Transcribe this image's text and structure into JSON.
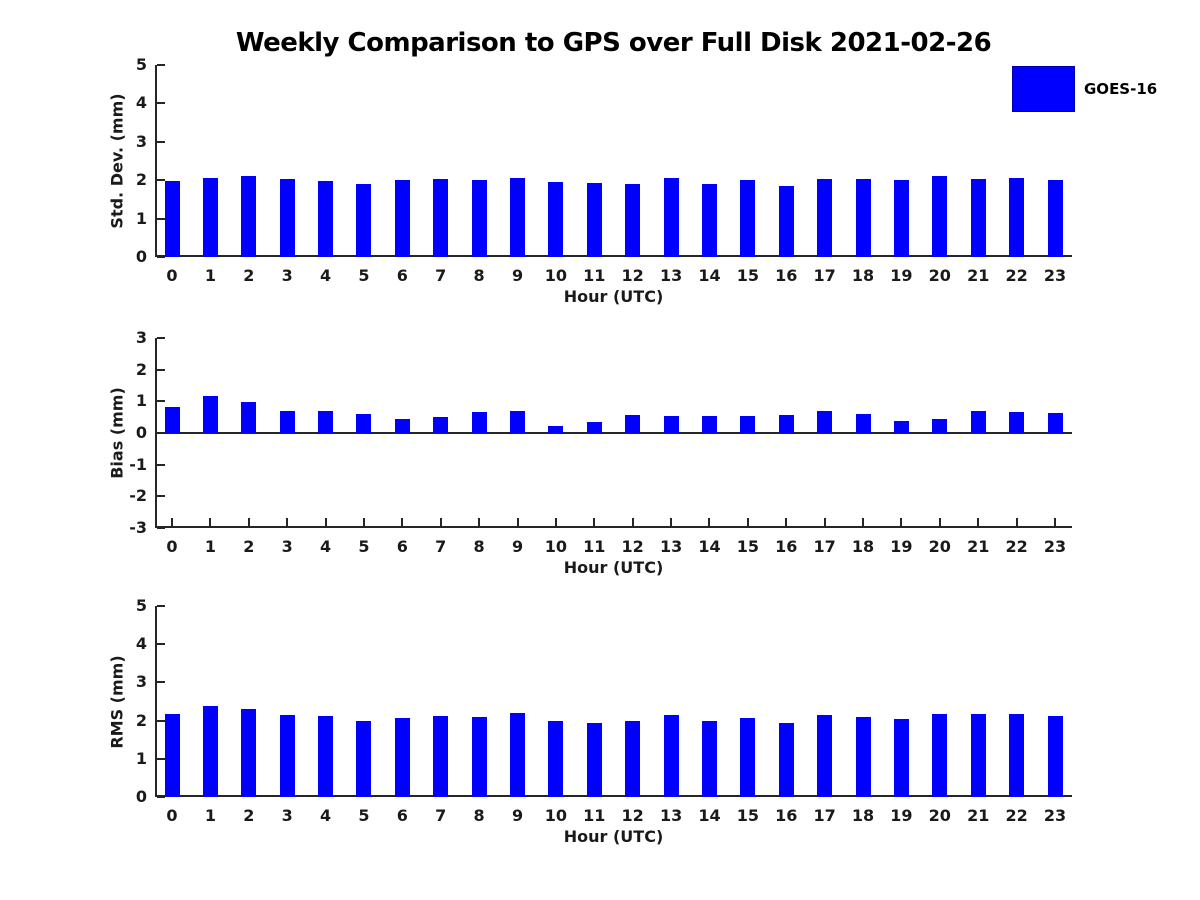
{
  "title": "Weekly Comparison to GPS over Full Disk 2021-02-26",
  "legend": {
    "label": "GOES-16",
    "color": "#0000ff"
  },
  "colors": {
    "bar": "#0000ff",
    "axis": "#262626",
    "text": "#1a1a1a"
  },
  "chart_data": [
    {
      "type": "bar",
      "name": "std-dev",
      "ylabel": "Std. Dev. (mm)",
      "xlabel": "Hour (UTC)",
      "series_name": "GOES-16",
      "categories": [
        "0",
        "1",
        "2",
        "3",
        "4",
        "5",
        "6",
        "7",
        "8",
        "9",
        "10",
        "11",
        "12",
        "13",
        "14",
        "15",
        "16",
        "17",
        "18",
        "19",
        "20",
        "21",
        "22",
        "23"
      ],
      "values": [
        1.98,
        2.07,
        2.1,
        2.02,
        1.99,
        1.89,
        2.01,
        2.04,
        2.01,
        2.06,
        1.95,
        1.92,
        1.91,
        2.06,
        1.9,
        2.0,
        1.86,
        2.02,
        2.02,
        2.0,
        2.12,
        2.04,
        2.06,
        2.01
      ],
      "ylim": [
        0,
        5
      ],
      "yticks": [
        0,
        1,
        2,
        3,
        4,
        5
      ],
      "grid": false,
      "legend_position": "top-right"
    },
    {
      "type": "bar",
      "name": "bias",
      "ylabel": "Bias (mm)",
      "xlabel": "Hour (UTC)",
      "series_name": "GOES-16",
      "categories": [
        "0",
        "1",
        "2",
        "3",
        "4",
        "5",
        "6",
        "7",
        "8",
        "9",
        "10",
        "11",
        "12",
        "13",
        "14",
        "15",
        "16",
        "17",
        "18",
        "19",
        "20",
        "21",
        "22",
        "23"
      ],
      "values": [
        0.82,
        1.16,
        0.97,
        0.7,
        0.71,
        0.61,
        0.45,
        0.5,
        0.67,
        0.69,
        0.23,
        0.36,
        0.56,
        0.53,
        0.54,
        0.53,
        0.57,
        0.7,
        0.61,
        0.37,
        0.45,
        0.71,
        0.67,
        0.62
      ],
      "ylim": [
        -3,
        3
      ],
      "yticks": [
        -3,
        -2,
        -1,
        0,
        1,
        2,
        3
      ],
      "grid": false,
      "legend_position": "none"
    },
    {
      "type": "bar",
      "name": "rms",
      "ylabel": "RMS (mm)",
      "xlabel": "Hour (UTC)",
      "series_name": "GOES-16",
      "categories": [
        "0",
        "1",
        "2",
        "3",
        "4",
        "5",
        "6",
        "7",
        "8",
        "9",
        "10",
        "11",
        "12",
        "13",
        "14",
        "15",
        "16",
        "17",
        "18",
        "19",
        "20",
        "21",
        "22",
        "23"
      ],
      "values": [
        2.16,
        2.38,
        2.3,
        2.15,
        2.11,
        1.98,
        2.06,
        2.11,
        2.1,
        2.19,
        1.98,
        1.95,
        2.0,
        2.15,
        1.98,
        2.08,
        1.94,
        2.14,
        2.1,
        2.05,
        2.17,
        2.16,
        2.17,
        2.12
      ],
      "ylim": [
        0,
        5
      ],
      "yticks": [
        0,
        1,
        2,
        3,
        4,
        5
      ],
      "grid": false,
      "legend_position": "none"
    }
  ]
}
